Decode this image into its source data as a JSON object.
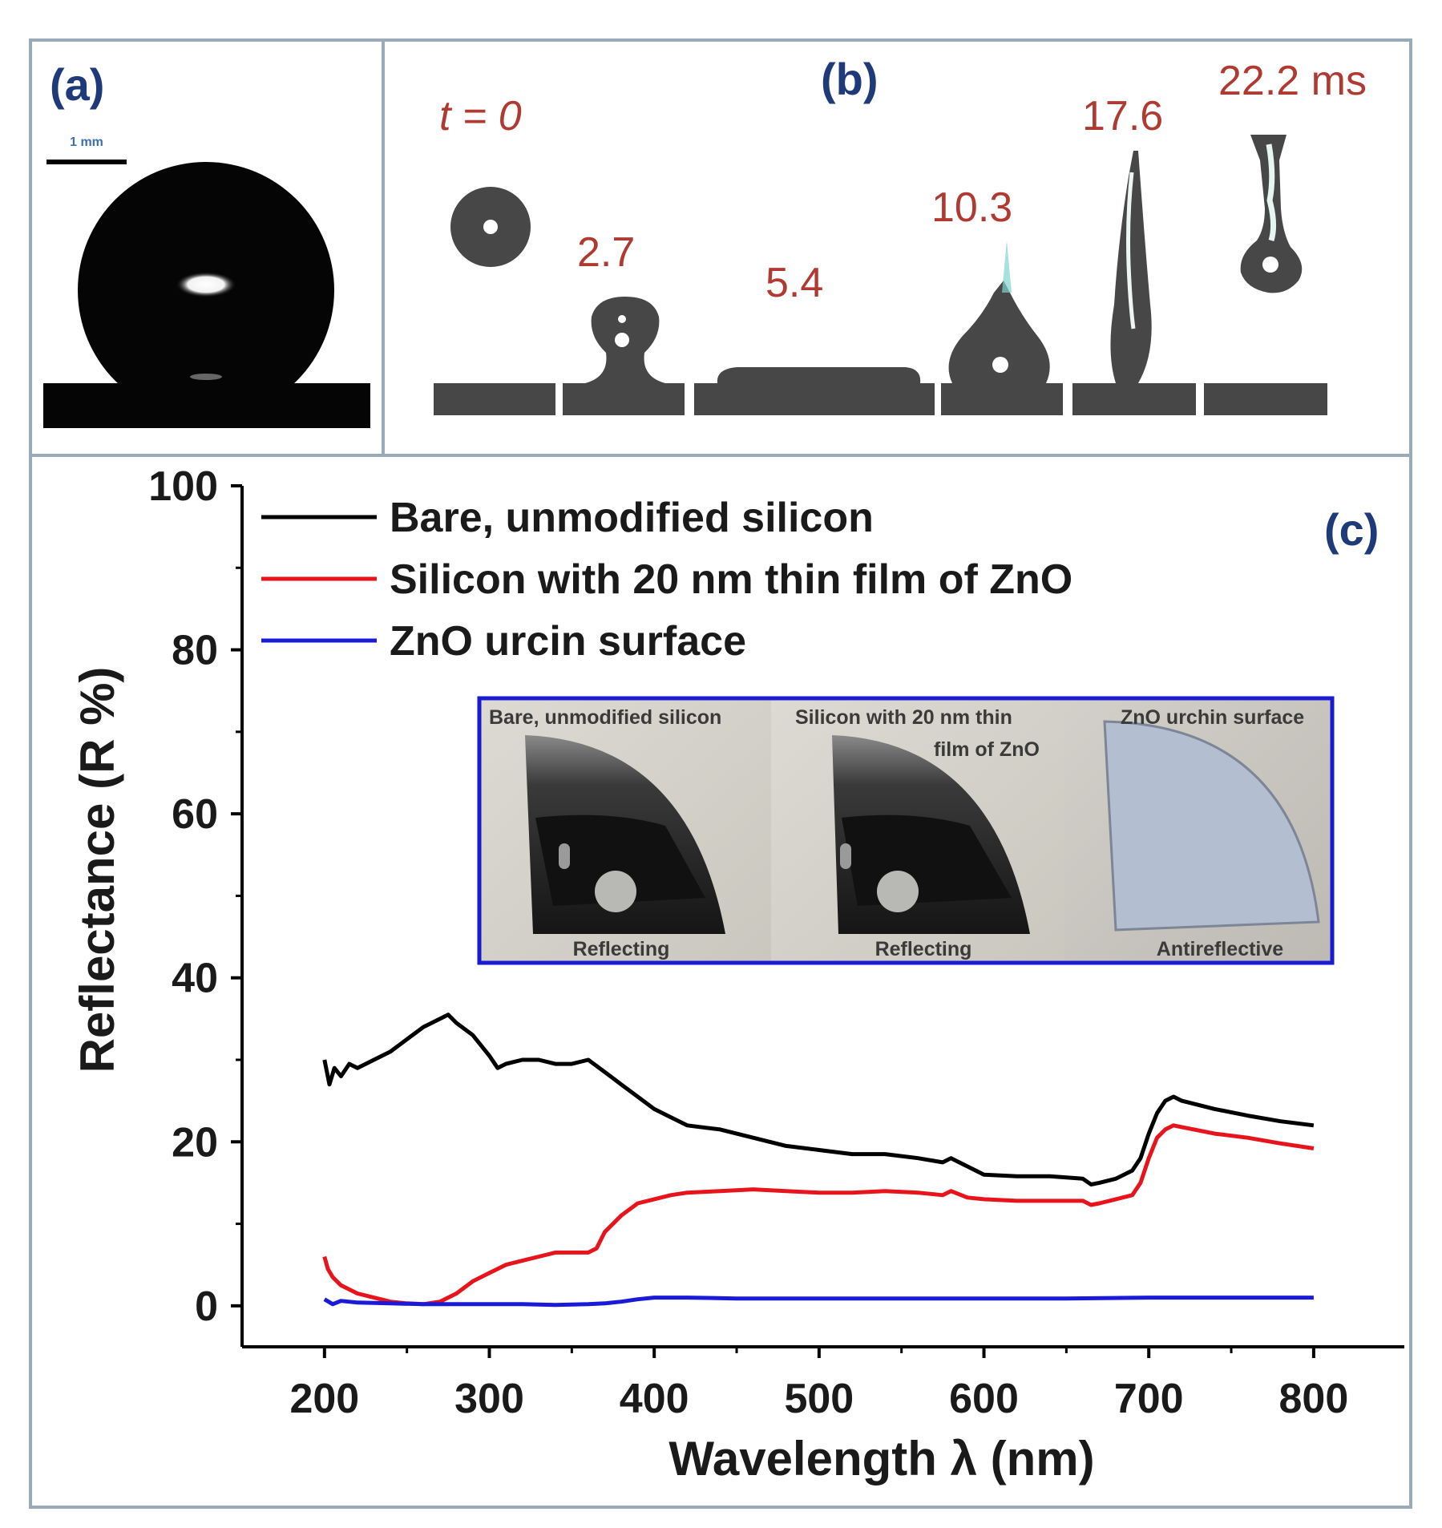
{
  "panels": {
    "a": {
      "label": "(a)",
      "scale_bar_label": "1 mm"
    },
    "b": {
      "label": "(b)",
      "frames": [
        {
          "time": "t = 0"
        },
        {
          "time": "2.7"
        },
        {
          "time": "5.4"
        },
        {
          "time": "10.3"
        },
        {
          "time": "17.6"
        },
        {
          "time": "22.2 ms"
        }
      ]
    },
    "c": {
      "label": "(c)"
    }
  },
  "inset": {
    "samples": [
      {
        "title_line1": "Bare, unmodified silicon",
        "title_line2": "",
        "caption": "Reflecting"
      },
      {
        "title_line1": "Silicon with 20 nm thin",
        "title_line2": "film of ZnO",
        "caption": "Reflecting"
      },
      {
        "title_line1": "ZnO urchin surface",
        "title_line2": "",
        "caption": "Antireflective"
      }
    ],
    "colors": {
      "border": "#1a1ad0"
    }
  },
  "chart_data": {
    "type": "line",
    "xlabel": "Wavelength λ (nm)",
    "ylabel": "Reflectance (R %)",
    "xlim": [
      150,
      855
    ],
    "ylim": [
      -5,
      100
    ],
    "xticks": [
      200,
      300,
      400,
      500,
      600,
      700,
      800
    ],
    "yticks": [
      0,
      20,
      40,
      60,
      80,
      100
    ],
    "legend_position": "top-left",
    "series": [
      {
        "name": "Bare, unmodified silicon",
        "color": "#000000",
        "x": [
          200,
          203,
          206,
          210,
          215,
          220,
          230,
          240,
          250,
          260,
          270,
          275,
          280,
          290,
          300,
          305,
          310,
          320,
          330,
          340,
          350,
          360,
          370,
          380,
          390,
          400,
          410,
          420,
          440,
          460,
          480,
          500,
          520,
          540,
          560,
          575,
          580,
          585,
          590,
          600,
          620,
          640,
          660,
          665,
          670,
          680,
          690,
          695,
          700,
          705,
          710,
          715,
          720,
          740,
          760,
          780,
          800
        ],
        "y": [
          30,
          27,
          29,
          28,
          29.5,
          29,
          30,
          31,
          32.5,
          34,
          35,
          35.5,
          34.5,
          33,
          30.5,
          29,
          29.5,
          30,
          30,
          29.5,
          29.5,
          30,
          28.5,
          27,
          25.5,
          24,
          23,
          22,
          21.5,
          20.5,
          19.5,
          19,
          18.5,
          18.5,
          18,
          17.5,
          18,
          17.5,
          17,
          16,
          15.8,
          15.8,
          15.5,
          14.8,
          15,
          15.5,
          16.5,
          18,
          21,
          23.5,
          25,
          25.5,
          25,
          24,
          23.2,
          22.5,
          22
        ]
      },
      {
        "name": "Silicon with 20 nm thin film of ZnO",
        "color": "#e8141c",
        "x": [
          200,
          202,
          205,
          210,
          220,
          230,
          240,
          250,
          260,
          270,
          280,
          290,
          300,
          310,
          320,
          330,
          340,
          350,
          360,
          365,
          370,
          380,
          390,
          400,
          410,
          420,
          440,
          460,
          480,
          500,
          520,
          540,
          560,
          575,
          580,
          590,
          600,
          620,
          640,
          660,
          665,
          670,
          680,
          690,
          695,
          700,
          705,
          710,
          715,
          720,
          740,
          760,
          780,
          800
        ],
        "y": [
          6,
          4.5,
          3.5,
          2.5,
          1.5,
          1,
          0.5,
          0.3,
          0.2,
          0.5,
          1.5,
          3,
          4,
          5,
          5.5,
          6,
          6.5,
          6.5,
          6.5,
          7,
          9,
          11,
          12.5,
          13,
          13.5,
          13.8,
          14,
          14.2,
          14,
          13.8,
          13.8,
          14,
          13.8,
          13.5,
          14,
          13.2,
          13,
          12.8,
          12.8,
          12.8,
          12.3,
          12.5,
          13,
          13.5,
          15,
          18,
          20.5,
          21.5,
          22,
          21.8,
          21,
          20.5,
          19.8,
          19.2
        ]
      },
      {
        "name": "ZnO urcin surface",
        "color": "#1a1ad8",
        "x": [
          200,
          205,
          210,
          220,
          240,
          260,
          280,
          300,
          320,
          340,
          360,
          370,
          380,
          390,
          400,
          420,
          450,
          500,
          550,
          600,
          650,
          700,
          750,
          800
        ],
        "y": [
          0.8,
          0.2,
          0.6,
          0.4,
          0.3,
          0.2,
          0.2,
          0.2,
          0.2,
          0.1,
          0.2,
          0.3,
          0.5,
          0.8,
          1,
          1,
          0.9,
          0.9,
          0.9,
          0.9,
          0.9,
          1,
          1,
          1
        ]
      }
    ]
  }
}
